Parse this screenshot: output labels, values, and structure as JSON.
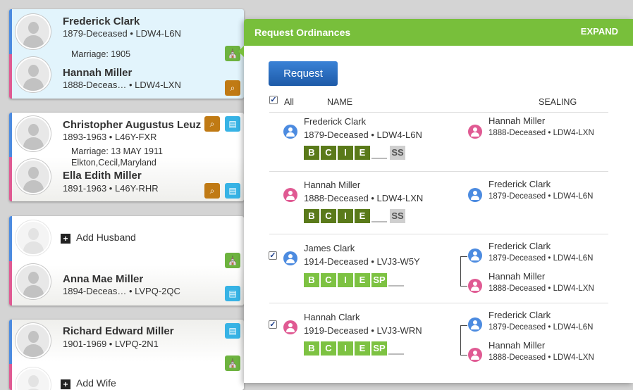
{
  "families": [
    {
      "husband": {
        "name": "Frederick Clark",
        "meta": "1879-Deceased • LDW4-L6N"
      },
      "marriage": "Marriage: 1905",
      "wife": {
        "name": "Hannah Miller",
        "meta": "1888-Deceas… • LDW4-LXN"
      }
    },
    {
      "husband": {
        "name": "Christopher Augustus Leuz",
        "meta": "1893-1963 • L46Y-FXR"
      },
      "marriage": "Marriage: 13 MAY 1911",
      "marriage_place": "Elkton,Cecil,Maryland",
      "wife": {
        "name": "Ella Edith Miller",
        "meta": "1891-1963 • L46Y-RHR"
      }
    },
    {
      "add_label": "Add Husband",
      "wife": {
        "name": "Anna Mae Miller",
        "meta": "1894-Deceas… • LVPQ-2QC"
      }
    },
    {
      "husband": {
        "name": "Richard Edward Miller",
        "meta": "1901-1969 • LVPQ-2N1"
      },
      "add_label": "Add Wife"
    }
  ],
  "panel": {
    "title": "Request Ordinances",
    "expand": "EXPAND",
    "request_button": "Request",
    "all_label": "All",
    "col_name": "NAME",
    "col_sealing": "SEALING",
    "rows": [
      {
        "name": "Frederick Clark",
        "meta": "1879-Deceased • LDW4-L6N",
        "gender": "m",
        "checked": false,
        "ordinances": [
          "B",
          "C",
          "I",
          "E"
        ],
        "ord_style": "dark",
        "extra": "SS",
        "spouses": [
          {
            "name": "Hannah Miller",
            "meta": "1888-Deceased • LDW4-LXN",
            "gender": "f"
          }
        ]
      },
      {
        "name": "Hannah Miller",
        "meta": "1888-Deceased • LDW4-LXN",
        "gender": "f",
        "checked": false,
        "ordinances": [
          "B",
          "C",
          "I",
          "E"
        ],
        "ord_style": "dark",
        "extra": "SS",
        "spouses": [
          {
            "name": "Frederick Clark",
            "meta": "1879-Deceased • LDW4-L6N",
            "gender": "m"
          }
        ]
      },
      {
        "name": "James Clark",
        "meta": "1914-Deceased • LVJ3-W5Y",
        "gender": "m",
        "checked": true,
        "ordinances": [
          "B",
          "C",
          "I",
          "E",
          "SP"
        ],
        "ord_style": "light",
        "spouses": [
          {
            "name": "Frederick Clark",
            "meta": "1879-Deceased • LDW4-L6N",
            "gender": "m"
          },
          {
            "name": "Hannah Miller",
            "meta": "1888-Deceased • LDW4-LXN",
            "gender": "f"
          }
        ]
      },
      {
        "name": "Hannah Clark",
        "meta": "1919-Deceased • LVJ3-WRN",
        "gender": "f",
        "checked": true,
        "ordinances": [
          "B",
          "C",
          "I",
          "E",
          "SP"
        ],
        "ord_style": "light",
        "spouses": [
          {
            "name": "Frederick Clark",
            "meta": "1879-Deceased • LDW4-L6N",
            "gender": "m"
          },
          {
            "name": "Hannah Miller",
            "meta": "1888-Deceased • LDW4-LXN",
            "gender": "f"
          }
        ]
      }
    ]
  },
  "colors": {
    "panel_header": "#78bf3b",
    "male": "#4c8be0",
    "female": "#e05a93",
    "request_button": "#2a6ebf"
  }
}
